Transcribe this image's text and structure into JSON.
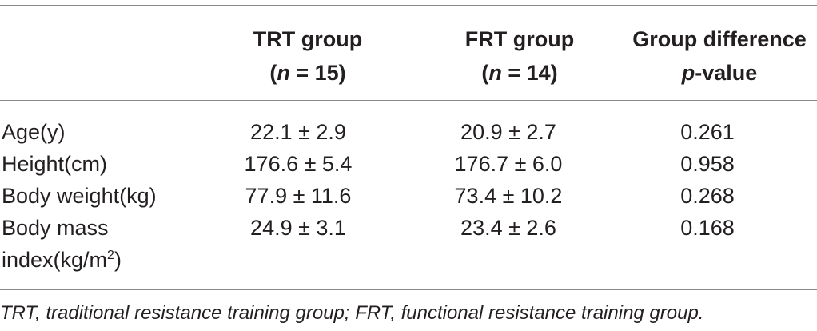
{
  "table": {
    "headers": {
      "trt": {
        "line1": "TRT group",
        "n_label": "n",
        "n_value": "15"
      },
      "frt": {
        "line1": "FRT group",
        "n_label": "n",
        "n_value": "14"
      },
      "diff": {
        "line1": "Group difference",
        "p_label": "p",
        "p_suffix": "-value"
      }
    },
    "rows": [
      {
        "label": "Age(y)",
        "trt": "22.1 ± 2.9",
        "frt": "20.9 ± 2.7",
        "p": "0.261"
      },
      {
        "label": "Height(cm)",
        "trt": "176.6 ± 5.4",
        "frt": "176.7 ± 6.0",
        "p": "0.958"
      },
      {
        "label": "Body weight(kg)",
        "trt": "77.9 ± 11.6",
        "frt": "73.4 ± 10.2",
        "p": "0.268"
      },
      {
        "label_line1": "Body mass",
        "label_line2": "index(kg/m",
        "label_sup": "2",
        "label_close": ")",
        "trt": "24.9 ± 3.1",
        "frt": "23.4 ± 2.6",
        "p": "0.168"
      }
    ]
  },
  "footnote": "TRT, traditional resistance training group; FRT, functional resistance training group."
}
